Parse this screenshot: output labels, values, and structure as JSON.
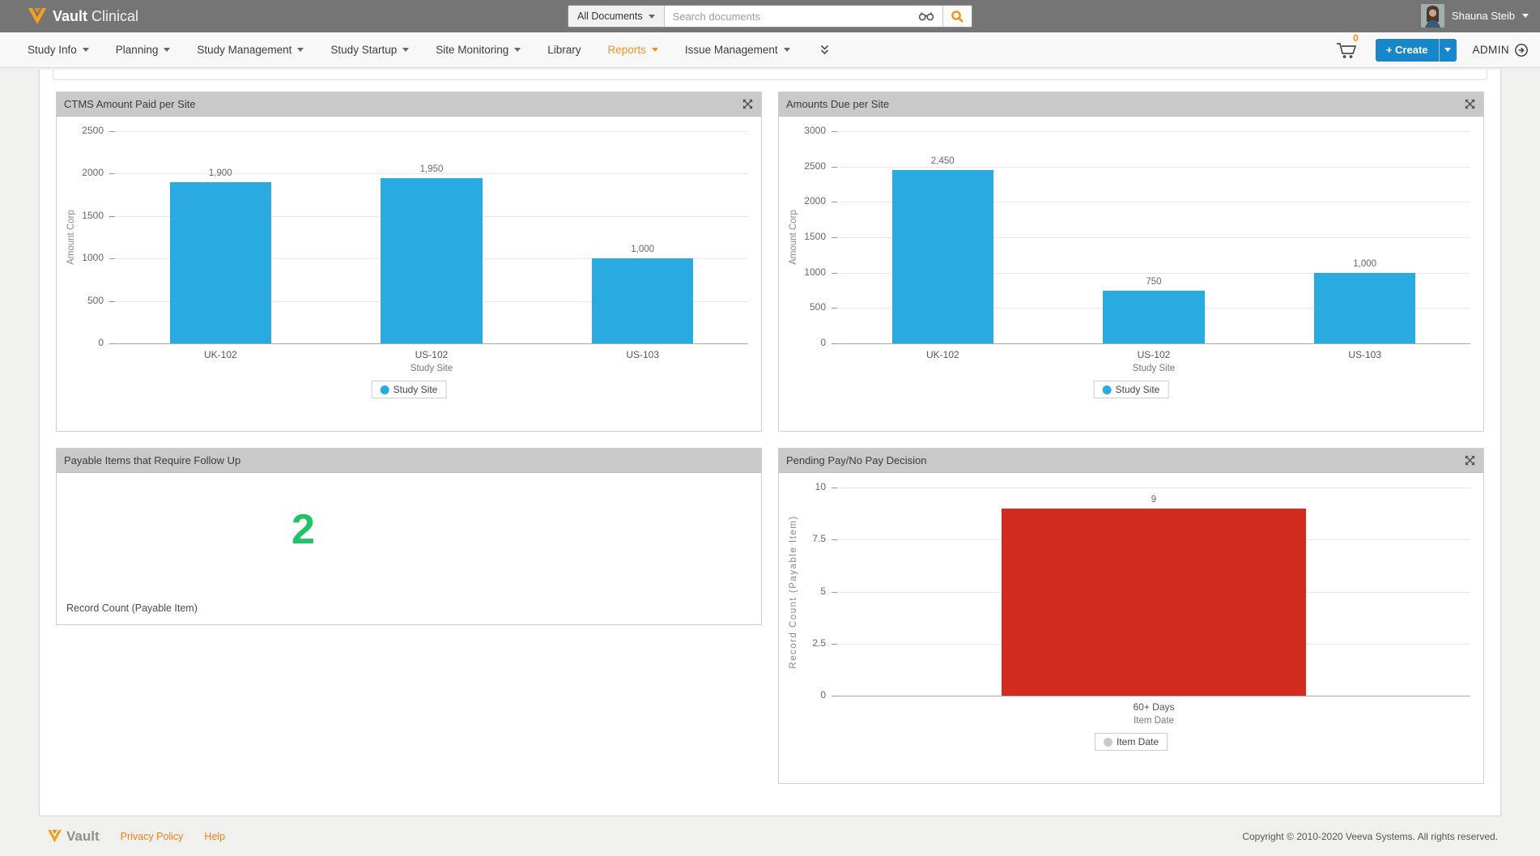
{
  "header": {
    "brand_bold": "Vault",
    "brand_light": "Clinical",
    "search": {
      "scope": "All Documents",
      "placeholder": "Search documents"
    },
    "user": {
      "name": "Shauna Steib"
    }
  },
  "nav": {
    "items": [
      {
        "label": "Study Info"
      },
      {
        "label": "Planning"
      },
      {
        "label": "Study Management"
      },
      {
        "label": "Study Startup"
      },
      {
        "label": "Site Monitoring"
      },
      {
        "label": "Library"
      },
      {
        "label": "Reports"
      },
      {
        "label": "Issue Management"
      }
    ],
    "cart_count": "0",
    "create_label": "+ Create",
    "admin_label": "ADMIN"
  },
  "chart_data": [
    {
      "type": "bar",
      "title": "CTMS Amount Paid per Site",
      "categories": [
        "UK-102",
        "US-102",
        "US-103"
      ],
      "values": [
        1900,
        1950,
        1000
      ],
      "value_labels": [
        "1,900",
        "1,950",
        "1,000"
      ],
      "xlabel": "Study Site",
      "ylabel": "Amount Corp",
      "ylim": [
        0,
        2500
      ],
      "ytick_values": [
        0,
        500,
        1000,
        1500,
        2000,
        2500
      ],
      "ytick_labels": [
        "0",
        "500",
        "1000",
        "1500",
        "2000",
        "2500"
      ],
      "bar_color": "#29ABE2",
      "grid": true,
      "legend": [
        {
          "label": "Study Site",
          "color": "#29ABE2"
        }
      ],
      "legend_position": "bottom"
    },
    {
      "type": "bar",
      "title": "Amounts Due per Site",
      "categories": [
        "UK-102",
        "US-102",
        "US-103"
      ],
      "values": [
        2450,
        750,
        1000
      ],
      "value_labels": [
        "2,450",
        "750",
        "1,000"
      ],
      "xlabel": "Study Site",
      "ylabel": "Amount Corp",
      "ylim": [
        0,
        3000
      ],
      "ytick_values": [
        0,
        500,
        1000,
        1500,
        2000,
        2500,
        3000
      ],
      "ytick_labels": [
        "0",
        "500",
        "1000",
        "1500",
        "2000",
        "2500",
        "3000"
      ],
      "bar_color": "#29ABE2",
      "grid": true,
      "legend": [
        {
          "label": "Study Site",
          "color": "#29ABE2"
        }
      ],
      "legend_position": "bottom"
    },
    {
      "type": "metric",
      "title": "Payable Items that Require Follow Up",
      "value": "2",
      "value_color": "#1FC464",
      "footnote": "Record Count (Payable Item)"
    },
    {
      "type": "bar",
      "title": "Pending Pay/No Pay Decision",
      "categories": [
        "60+ Days"
      ],
      "values": [
        9
      ],
      "value_labels": [
        "9"
      ],
      "xlabel": "Item Date",
      "ylabel": "Record Count (Payable Item)",
      "ylabel_spaced": true,
      "ylim": [
        0,
        10
      ],
      "ytick_values": [
        0,
        2.5,
        5,
        7.5,
        10
      ],
      "ytick_labels": [
        "0",
        "2.5",
        "5",
        "7.5",
        "10"
      ],
      "bar_color": "#D22B20",
      "grid": true,
      "legend": [
        {
          "label": "Item Date",
          "color": "#c9c9c9"
        }
      ],
      "legend_position": "bottom"
    }
  ],
  "footer": {
    "brand": "Vault",
    "links": [
      "Privacy Policy",
      "Help"
    ],
    "copyright": "Copyright © 2010-2020 Veeva Systems. All rights reserved."
  }
}
